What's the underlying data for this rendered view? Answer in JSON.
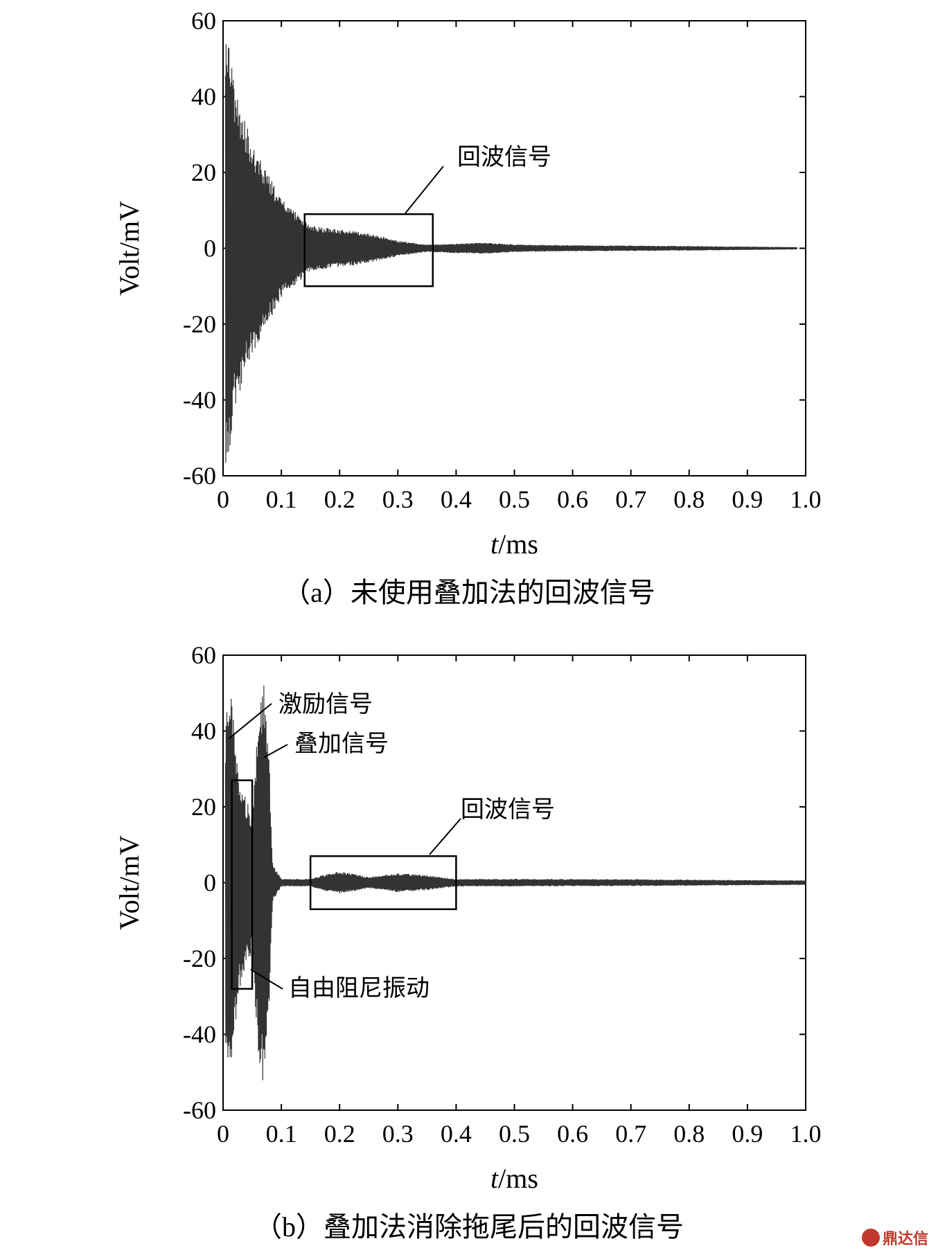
{
  "chart_data": [
    {
      "id": "a",
      "type": "line",
      "caption": "（a）未使用叠加法的回波信号",
      "xlabel_italic": "t",
      "xlabel_unit": "/ms",
      "ylabel": "Volt/mV",
      "xlim": [
        0,
        1.0
      ],
      "ylim": [
        -60,
        60
      ],
      "xticks": [
        0,
        0.1,
        0.2,
        0.3,
        0.4,
        0.5,
        0.6,
        0.7,
        0.8,
        0.9,
        1.0
      ],
      "xtick_labels": [
        "0",
        "0.1",
        "0.2",
        "0.3",
        "0.4",
        "0.5",
        "0.6",
        "0.7",
        "0.8",
        "0.9",
        "1.0"
      ],
      "yticks": [
        -60,
        -40,
        -20,
        0,
        20,
        40,
        60
      ],
      "ytick_labels": [
        "-60",
        "-40",
        "-20",
        "0",
        "20",
        "40",
        "60"
      ],
      "grid": false,
      "x_end": 0.985,
      "envelope": [
        [
          0,
          60
        ],
        [
          0.01,
          58
        ],
        [
          0.02,
          42
        ],
        [
          0.05,
          28
        ],
        [
          0.1,
          13
        ],
        [
          0.15,
          6
        ],
        [
          0.2,
          5
        ],
        [
          0.25,
          4
        ],
        [
          0.3,
          2
        ],
        [
          0.35,
          1
        ],
        [
          0.45,
          1.5
        ],
        [
          0.5,
          1
        ],
        [
          0.6,
          0.8
        ],
        [
          0.8,
          0.6
        ],
        [
          0.985,
          0.3
        ]
      ],
      "boxes": [
        {
          "label": "回波信号",
          "x0": 0.14,
          "x1": 0.36,
          "y0": -10,
          "y1": 9
        }
      ]
    },
    {
      "id": "b",
      "type": "line",
      "caption": "（b）叠加法消除拖尾后的回波信号",
      "xlabel_italic": "t",
      "xlabel_unit": "/ms",
      "ylabel": "Volt/mV",
      "xlim": [
        0,
        1.0
      ],
      "ylim": [
        -60,
        60
      ],
      "xticks": [
        0,
        0.1,
        0.2,
        0.3,
        0.4,
        0.5,
        0.6,
        0.7,
        0.8,
        0.9,
        1.0
      ],
      "xtick_labels": [
        "0",
        "0.1",
        "0.2",
        "0.3",
        "0.4",
        "0.5",
        "0.6",
        "0.7",
        "0.8",
        "0.9",
        "1.0"
      ],
      "yticks": [
        -60,
        -40,
        -20,
        0,
        20,
        40,
        60
      ],
      "ytick_labels": [
        "-60",
        "-40",
        "-20",
        "0",
        "20",
        "40",
        "60"
      ],
      "grid": false,
      "x_end": 1.0,
      "envelope": [
        [
          0,
          0
        ],
        [
          0.005,
          50
        ],
        [
          0.015,
          52
        ],
        [
          0.025,
          30
        ],
        [
          0.04,
          22
        ],
        [
          0.05,
          18
        ],
        [
          0.06,
          45
        ],
        [
          0.07,
          55
        ],
        [
          0.08,
          30
        ],
        [
          0.085,
          5
        ],
        [
          0.1,
          1
        ],
        [
          0.15,
          1
        ],
        [
          0.17,
          2
        ],
        [
          0.2,
          3
        ],
        [
          0.25,
          1.5
        ],
        [
          0.3,
          2.5
        ],
        [
          0.35,
          2
        ],
        [
          0.4,
          1
        ],
        [
          0.5,
          1
        ],
        [
          0.7,
          0.9
        ],
        [
          1.0,
          0.6
        ]
      ],
      "boxes": [
        {
          "label": "回波信号",
          "x0": 0.15,
          "x1": 0.4,
          "y0": -7,
          "y1": 7
        },
        {
          "label": "自由阻尼振动",
          "x0": 0.015,
          "x1": 0.05,
          "y0": -28,
          "y1": 27
        }
      ],
      "annotations": [
        {
          "label": "激励信号",
          "x": 0.01,
          "y": 38
        },
        {
          "label": "叠加信号",
          "x": 0.07,
          "y": 33
        }
      ]
    }
  ],
  "watermark": {
    "text": "鼎达信"
  }
}
